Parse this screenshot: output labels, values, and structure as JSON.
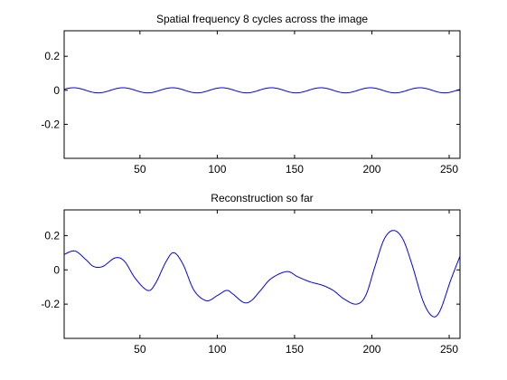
{
  "chart_data": [
    {
      "type": "line",
      "title": "Spatial frequency 8 cycles across the image",
      "xlabel": "",
      "ylabel": "",
      "xlim": [
        1,
        257
      ],
      "ylim": [
        -0.4,
        0.35
      ],
      "xticks": [
        50,
        100,
        150,
        200,
        250
      ],
      "yticks": [
        0.2,
        0,
        -0.2
      ],
      "yticklabels": [
        "0.2",
        "0",
        "-0.2"
      ],
      "grid": false,
      "series": [
        {
          "color": "#0000ff",
          "function": "sinusoid",
          "amplitude": 0.015,
          "cycles": 8,
          "period": 32,
          "phase_peak_at_x": 7,
          "offset": 0
        }
      ]
    },
    {
      "type": "line",
      "title": "Reconstruction so far",
      "xlabel": "",
      "ylabel": "",
      "xlim": [
        1,
        257
      ],
      "ylim": [
        -0.4,
        0.35
      ],
      "xticks": [
        50,
        100,
        150,
        200,
        250
      ],
      "yticks": [
        0.2,
        0,
        -0.2
      ],
      "yticklabels": [
        "0.2",
        "0",
        "-0.2"
      ],
      "grid": false,
      "series": [
        {
          "color": "#0000ff",
          "x": [
            1,
            8,
            15,
            20,
            26,
            34,
            40,
            47,
            55,
            60,
            67,
            72,
            78,
            85,
            93,
            100,
            106,
            110,
            117,
            122,
            128,
            135,
            145,
            152,
            160,
            168,
            175,
            182,
            190,
            196,
            202,
            208,
            214,
            220,
            226,
            233,
            239,
            244,
            251,
            257
          ],
          "y": [
            0.09,
            0.11,
            0.06,
            0.02,
            0.02,
            0.07,
            0.05,
            -0.05,
            -0.12,
            -0.08,
            0.05,
            0.1,
            0.03,
            -0.12,
            -0.18,
            -0.15,
            -0.12,
            -0.14,
            -0.19,
            -0.18,
            -0.12,
            -0.05,
            -0.01,
            -0.04,
            -0.07,
            -0.09,
            -0.12,
            -0.17,
            -0.2,
            -0.15,
            0.02,
            0.18,
            0.23,
            0.18,
            0.03,
            -0.18,
            -0.27,
            -0.24,
            -0.06,
            0.08
          ]
        }
      ]
    }
  ]
}
